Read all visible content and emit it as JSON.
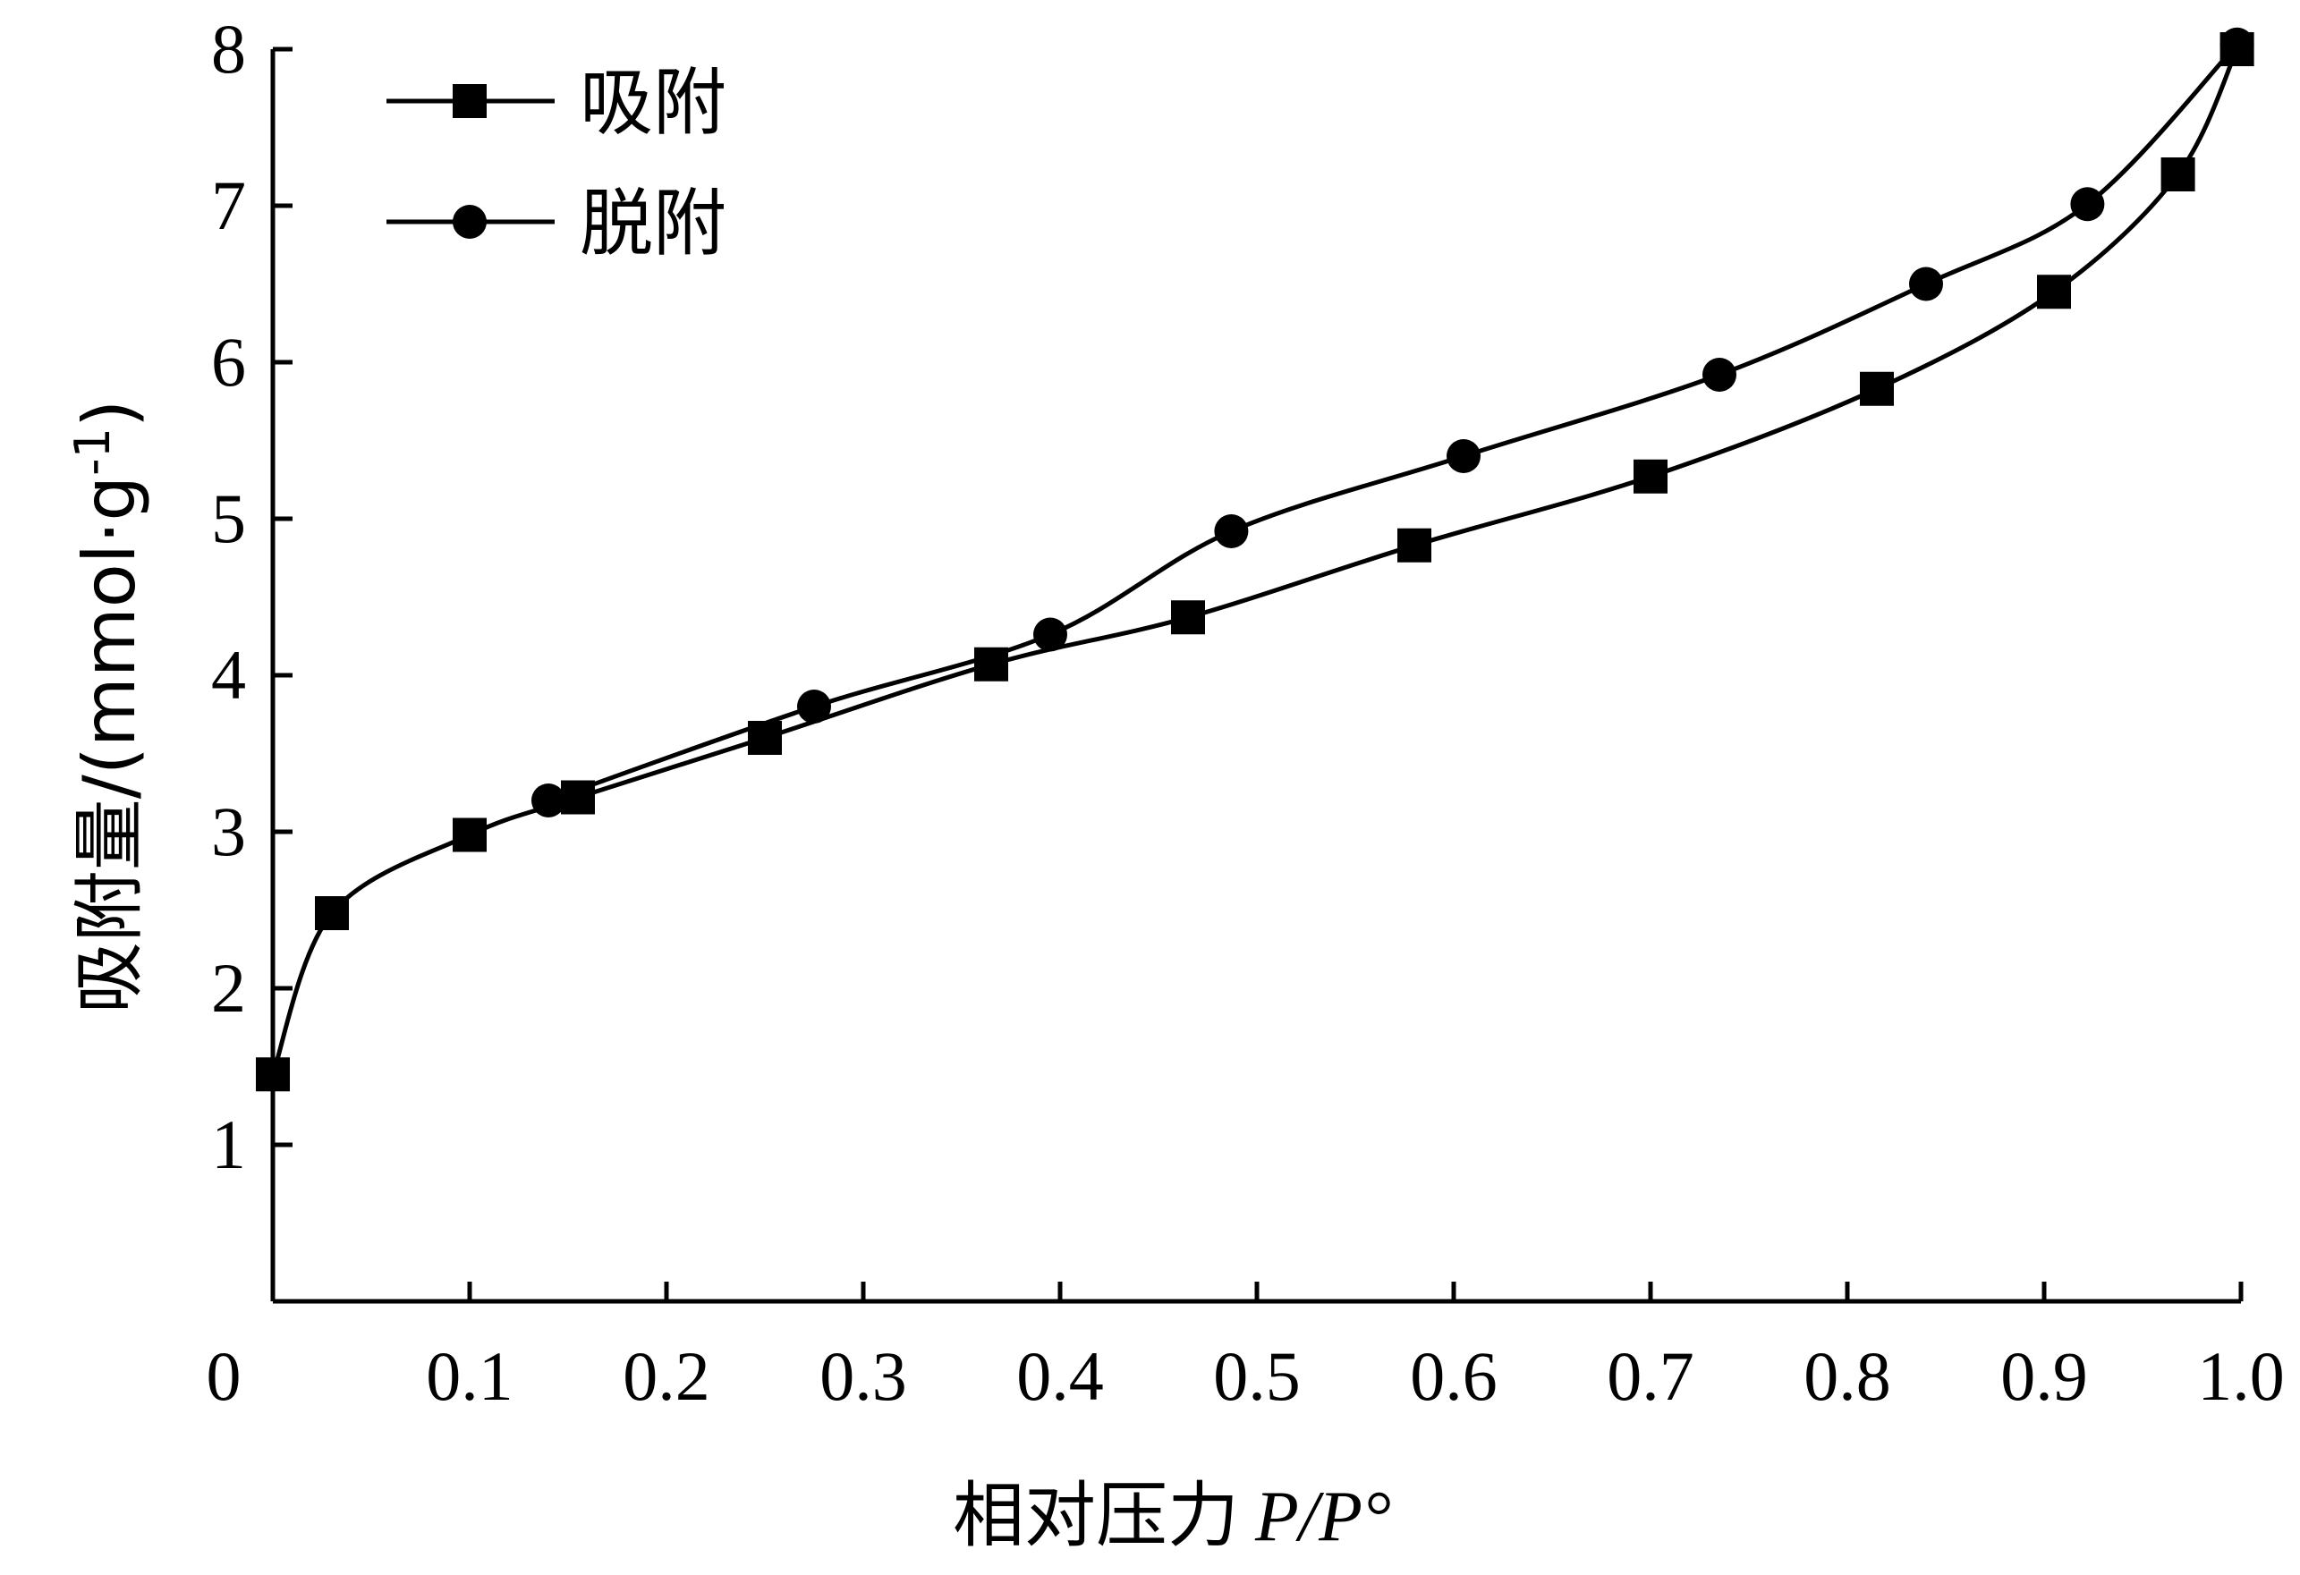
{
  "chart_data": {
    "type": "line",
    "title": "",
    "xlabel_prefix": "相对压力",
    "xlabel_var1": "P",
    "xlabel_sep": "/",
    "xlabel_var2": "P°",
    "ylabel_main": "吸附量/(mmol·g",
    "ylabel_sup": "-1",
    "ylabel_close": ")",
    "xlim": [
      0,
      1.0
    ],
    "ylim": [
      0,
      8
    ],
    "x_ticks": [
      "0",
      "0.1",
      "0.2",
      "0.3",
      "0.4",
      "0.5",
      "0.6",
      "0.7",
      "0.8",
      "0.9",
      "1.0"
    ],
    "y_ticks": [
      "1",
      "2",
      "3",
      "4",
      "5",
      "6",
      "7",
      "8"
    ],
    "grid": false,
    "legend_position": "top-left",
    "color": "#000000",
    "series": [
      {
        "name": "吸附",
        "marker": "square",
        "x": [
          0.0,
          0.03,
          0.1,
          0.155,
          0.25,
          0.365,
          0.465,
          0.58,
          0.7,
          0.815,
          0.905,
          0.968,
          0.998
        ],
        "y": [
          1.45,
          2.48,
          2.98,
          3.22,
          3.6,
          4.07,
          4.37,
          4.83,
          5.27,
          5.83,
          6.45,
          7.2,
          8.0
        ]
      },
      {
        "name": "脱附",
        "marker": "circle",
        "x": [
          0.14,
          0.275,
          0.395,
          0.487,
          0.605,
          0.735,
          0.84,
          0.922,
          0.998
        ],
        "y": [
          3.2,
          3.8,
          4.26,
          4.92,
          5.4,
          5.92,
          6.5,
          7.01,
          8.03
        ]
      }
    ]
  }
}
